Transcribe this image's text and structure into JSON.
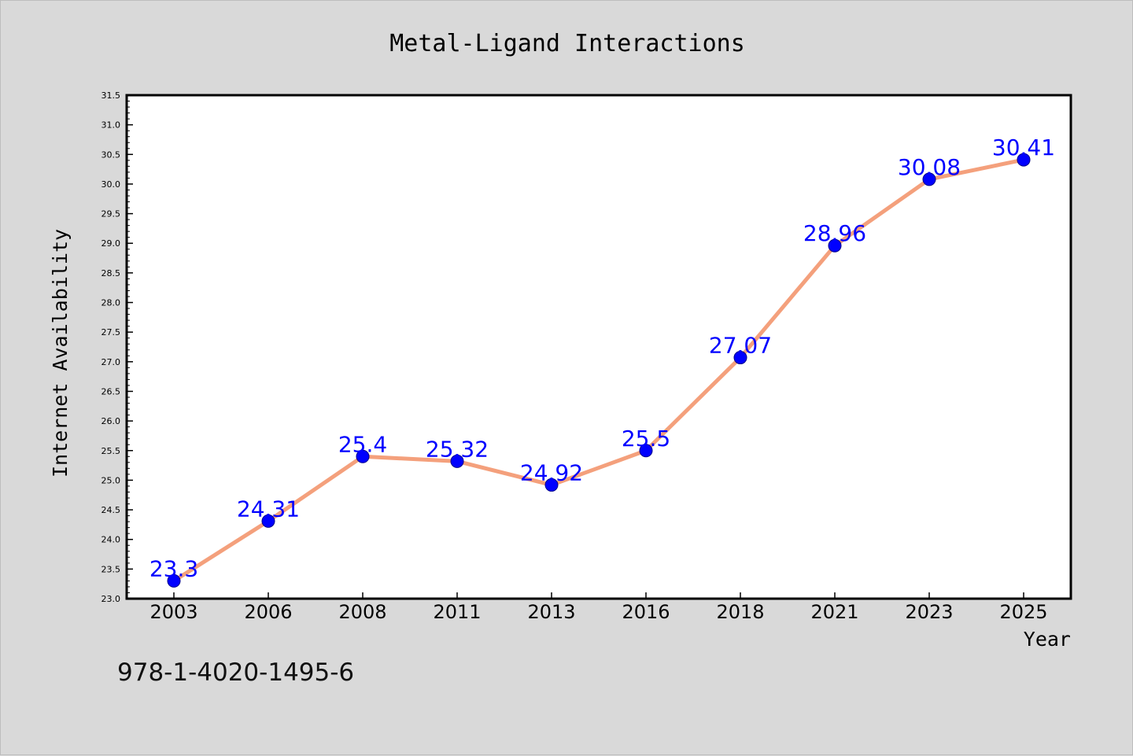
{
  "chart_data": {
    "type": "line",
    "title": "Metal-Ligand Interactions",
    "xlabel": "Year",
    "ylabel": "Internet Availability",
    "categories": [
      "2003",
      "2006",
      "2008",
      "2011",
      "2013",
      "2016",
      "2018",
      "2021",
      "2023",
      "2025"
    ],
    "series": [
      {
        "values": [
          23.3,
          24.31,
          25.4,
          25.32,
          24.92,
          25.5,
          27.07,
          28.96,
          30.08,
          30.41
        ],
        "labels": [
          "23.3",
          "24.31",
          "25.4",
          "25.32",
          "24.92",
          "25.5",
          "27.07",
          "28.96",
          "30.08",
          "30.41"
        ],
        "line_color": "#f4a07c",
        "marker_color": "#0000ff",
        "label_color": "#0000ff"
      }
    ],
    "yticks": [
      "23.0",
      "23.5",
      "24.0",
      "24.5",
      "25.0",
      "25.5",
      "26.0",
      "26.5",
      "27.0",
      "27.5",
      "28.0",
      "28.5",
      "29.0",
      "29.5",
      "30.0",
      "30.5",
      "31.0",
      "31.5"
    ],
    "ylim": [
      23.0,
      31.5
    ],
    "grid": false,
    "legend": "none"
  },
  "annotation": "978-1-4020-1495-6",
  "colors": {
    "background": "#d9d9d9",
    "plot_background": "#ffffff",
    "axis": "#000000"
  }
}
